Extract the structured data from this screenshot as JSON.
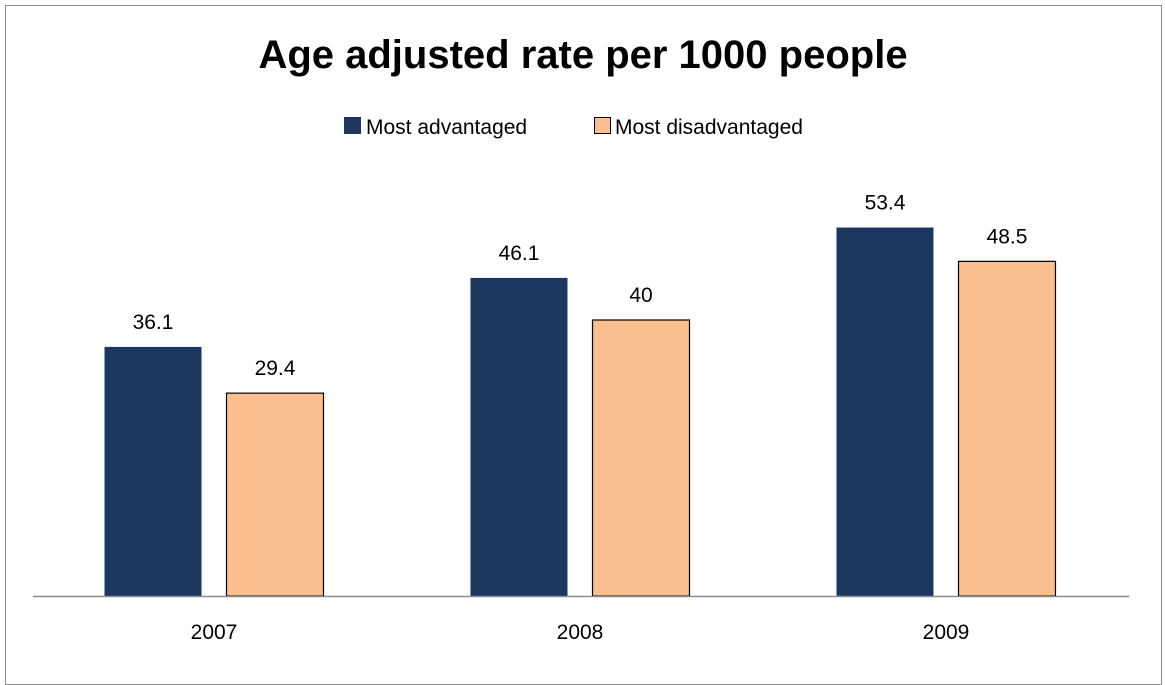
{
  "chart_data": {
    "type": "bar",
    "title": "Age adjusted rate per 1000 people",
    "categories": [
      "2007",
      "2008",
      "2009"
    ],
    "series": [
      {
        "name": "Most advantaged",
        "values": [
          36.1,
          46.1,
          53.4
        ],
        "color": "#1b375e"
      },
      {
        "name": "Most disadvantaged",
        "values": [
          29.4,
          40,
          48.5
        ],
        "color": "#f9bf8f"
      }
    ],
    "data_labels": [
      [
        "36.1",
        "46.1",
        "53.4"
      ],
      [
        "29.4",
        "40",
        "48.5"
      ]
    ],
    "ylim": [
      0,
      60
    ],
    "legend_position": "top",
    "grid": false,
    "y_axis_visible": false
  }
}
